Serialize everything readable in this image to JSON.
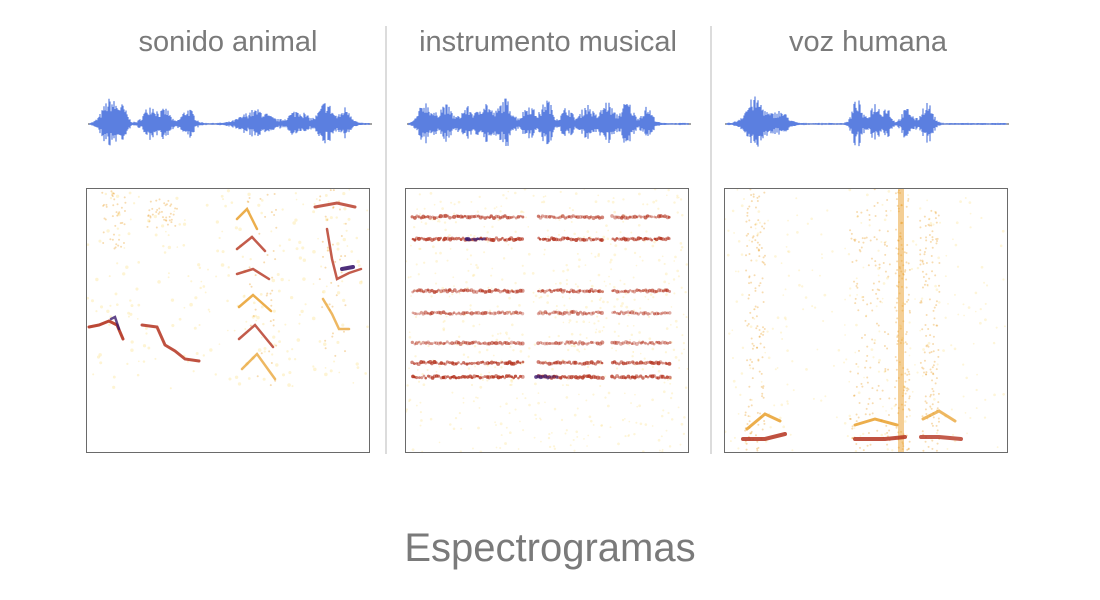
{
  "title": "Espectrogramas",
  "colors": {
    "waveform": "#5b7fe0",
    "baseline": "#6a6a6a",
    "divider": "#dcdcdc",
    "text": "#7a7a7a",
    "spectrogram_low": "#fde9a8",
    "spectrogram_mid": "#e79a1f",
    "spectrogram_high": "#b4331f",
    "spectrogram_peak": "#3b1a6e"
  },
  "panels": [
    {
      "id": "animal",
      "label": "sonido animal"
    },
    {
      "id": "instrument",
      "label": "instrumento musical"
    },
    {
      "id": "voice",
      "label": "voz humana"
    }
  ]
}
